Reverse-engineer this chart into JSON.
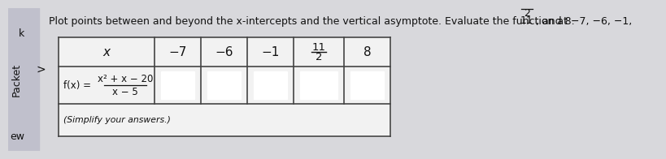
{
  "title_part1": "Plot points between and beyond the x-intercepts and the vertical asymptote. Evaluate the function at −7, −6, −1, ",
  "title_frac_num": "11",
  "title_frac_den": "2",
  "title_part2": ", and 8.",
  "x_label": "x",
  "x_values": [
    "−7",
    "−6",
    "−1",
    "",
    "8"
  ],
  "fx_label": "f(x) =",
  "fx_num": "x² + x − 20",
  "fx_den": "x − 5",
  "simplify_note": "(Simplify your answers.)",
  "background_color": "#d8d8dc",
  "table_bg": "#f2f2f2",
  "box_color": "#ffffff",
  "border_color": "#444444",
  "text_color": "#111111",
  "left_panel_color": "#c0c0cc",
  "title_fontsize": 9.0,
  "cell_fontsize": 10,
  "fx_fontsize": 8.5,
  "side_labels": [
    "k",
    ">",
    "Packet",
    "ew"
  ],
  "side_label_fontsize": 9
}
